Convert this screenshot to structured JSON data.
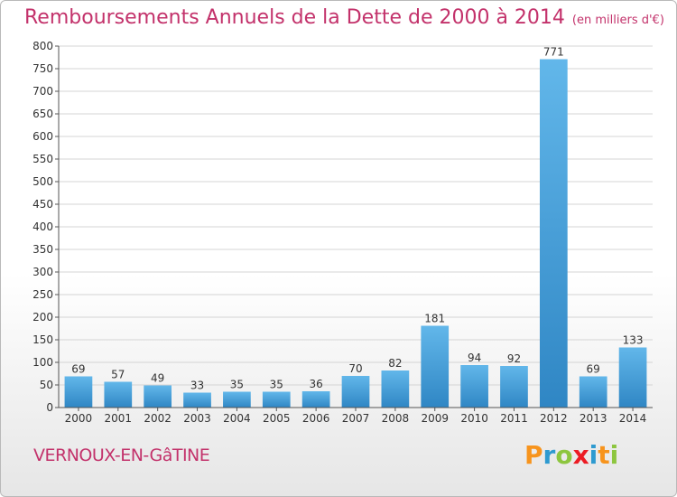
{
  "header": {
    "title": "Remboursements Annuels de la Dette de 2000 à 2014",
    "subtitle": "(en milliers d'€)"
  },
  "footer": {
    "place": "VERNOUX-EN-GâTINE",
    "logo_text": "Proxiti",
    "logo_colors": [
      "#f7941d",
      "#2e9ad0",
      "#8dc63f",
      "#ec1c24",
      "#2e9ad0",
      "#f7941d",
      "#8dc63f"
    ]
  },
  "colors": {
    "bar_top": "#62b7ea",
    "bar_bottom": "#2f86c4",
    "grid": "#d4d4d4",
    "axis": "#555555",
    "title": "#c3326b"
  },
  "chart_data": {
    "type": "bar",
    "categories": [
      "2000",
      "2001",
      "2002",
      "2003",
      "2004",
      "2005",
      "2006",
      "2007",
      "2008",
      "2009",
      "2010",
      "2011",
      "2012",
      "2013",
      "2014"
    ],
    "values": [
      69,
      57,
      49,
      33,
      35,
      35,
      36,
      70,
      82,
      181,
      94,
      92,
      771,
      69,
      133
    ],
    "title": "Remboursements Annuels de la Dette de 2000 à 2014",
    "ylim": [
      0,
      800
    ],
    "yticks": [
      0,
      50,
      100,
      150,
      200,
      250,
      300,
      350,
      400,
      450,
      500,
      550,
      600,
      650,
      700,
      750,
      800
    ],
    "grid": true,
    "data_labels": true
  }
}
